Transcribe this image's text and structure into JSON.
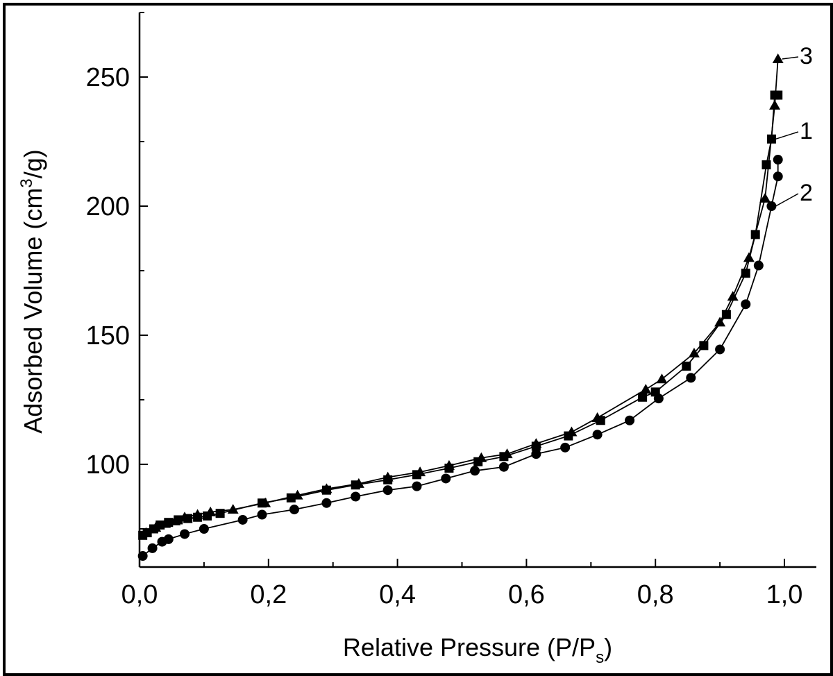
{
  "chart_data": {
    "type": "scatter",
    "title": "",
    "xlabel": "Relative Pressure (P/P",
    "xlabel_sub": "s",
    "xlabel_tail": ")",
    "ylabel": "Adsorbed Volume (cm",
    "ylabel_sup": "3",
    "ylabel_tail": "/g)",
    "xlim": [
      0.0,
      1.05
    ],
    "ylim": [
      60,
      275
    ],
    "xticks": [
      "0,0",
      "0,2",
      "0,4",
      "0,6",
      "0,8",
      "1,0"
    ],
    "xtick_values": [
      0.0,
      0.2,
      0.4,
      0.6,
      0.8,
      1.0
    ],
    "yticks": [
      "100",
      "150",
      "200",
      "250"
    ],
    "ytick_values": [
      100,
      150,
      200,
      250
    ],
    "grid": false,
    "legend": "none",
    "line_color": "#000000",
    "series": [
      {
        "name": "1",
        "marker": "square",
        "x": [
          0.005,
          0.012,
          0.022,
          0.032,
          0.045,
          0.06,
          0.075,
          0.09,
          0.105,
          0.125,
          0.19,
          0.235,
          0.29,
          0.335,
          0.385,
          0.43,
          0.48,
          0.525,
          0.565,
          0.615,
          0.665,
          0.715,
          0.78,
          0.8,
          0.848,
          0.875,
          0.91,
          0.94,
          0.955,
          0.972,
          0.98,
          0.985,
          0.99
        ],
        "y": [
          72.5,
          73.5,
          75,
          76.5,
          77.5,
          78.5,
          79,
          79.5,
          80,
          81,
          85,
          87,
          90,
          92,
          94,
          96,
          98.5,
          101,
          103,
          107,
          111,
          117,
          126,
          128,
          138,
          146,
          158,
          174,
          189,
          216,
          226,
          243,
          243
        ]
      },
      {
        "name": "2",
        "marker": "circle",
        "x": [
          0.005,
          0.02,
          0.035,
          0.045,
          0.07,
          0.1,
          0.16,
          0.19,
          0.24,
          0.29,
          0.335,
          0.385,
          0.43,
          0.475,
          0.52,
          0.565,
          0.615,
          0.66,
          0.71,
          0.76,
          0.805,
          0.855,
          0.9,
          0.94,
          0.96,
          0.98,
          0.99,
          0.99
        ],
        "y": [
          64.5,
          67.5,
          70,
          71,
          73,
          75,
          78.5,
          80.5,
          82.5,
          85,
          87.5,
          90,
          91.5,
          94.5,
          97.5,
          99,
          104,
          106.5,
          111.5,
          117,
          125.5,
          133.5,
          144.5,
          162,
          177,
          200,
          211.5,
          218
        ]
      },
      {
        "name": "3",
        "marker": "triangle",
        "x": [
          0.01,
          0.025,
          0.04,
          0.055,
          0.07,
          0.09,
          0.11,
          0.145,
          0.195,
          0.245,
          0.29,
          0.34,
          0.385,
          0.435,
          0.48,
          0.53,
          0.57,
          0.615,
          0.67,
          0.71,
          0.785,
          0.81,
          0.86,
          0.9,
          0.92,
          0.945,
          0.97,
          0.985,
          0.99
        ],
        "y": [
          73.5,
          75.5,
          77,
          78,
          79.5,
          80.5,
          81.5,
          82.5,
          85,
          88,
          90.5,
          92.5,
          95,
          97,
          99.5,
          102.5,
          104,
          108,
          112.5,
          118,
          129,
          133,
          143,
          155,
          165,
          180,
          203,
          239,
          257
        ]
      }
    ]
  }
}
